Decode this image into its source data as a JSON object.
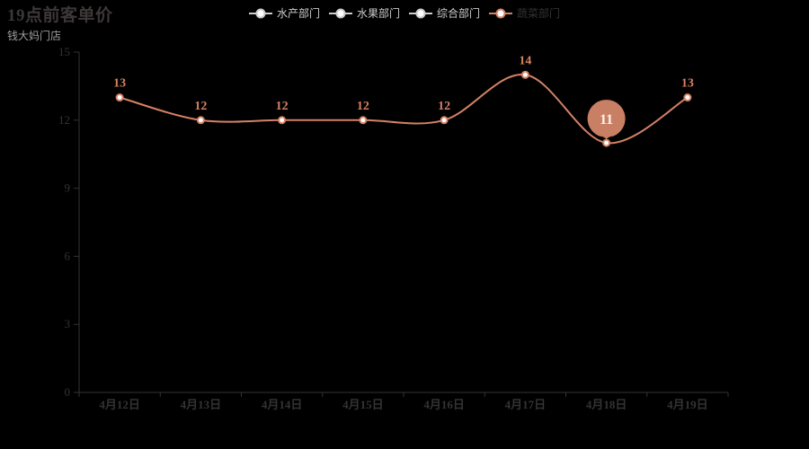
{
  "title": {
    "text": "19点前客单价",
    "subtext": "钱大妈门店",
    "color": "#3d3838",
    "subtext_color": "#9e9e9e"
  },
  "background_color": "#000000",
  "legend": {
    "position": "top-center",
    "inactive_color": "#cccccc",
    "selected_text_color": "#333333",
    "items": [
      {
        "label": "水产部门",
        "color": "#cccccc",
        "selected": false
      },
      {
        "label": "水果部门",
        "color": "#cccccc",
        "selected": false
      },
      {
        "label": "综合部门",
        "color": "#cccccc",
        "selected": false
      },
      {
        "label": "蔬菜部门",
        "color": "#d48265",
        "selected": true
      }
    ]
  },
  "chart_data": {
    "type": "line",
    "title": "19点前客单价",
    "subtitle": "钱大妈门店",
    "categories": [
      "4月12日",
      "4月13日",
      "4月14日",
      "4月15日",
      "4月16日",
      "4月17日",
      "4月18日",
      "4月19日"
    ],
    "series": [
      {
        "name": "蔬菜部门",
        "values": [
          13,
          12,
          12,
          12,
          12,
          14,
          11,
          13
        ],
        "color": "#d48265",
        "smooth": true,
        "point_style": {
          "fill": "#ffffff",
          "stroke": "#d48265"
        },
        "show_point_labels": true
      }
    ],
    "hidden_series": [
      "水产部门",
      "水果部门",
      "综合部门"
    ],
    "markpoint": {
      "category": "4月18日",
      "category_index": 6,
      "value": 11,
      "label": "11",
      "shape": "pin",
      "fill": "#c97f63",
      "text_color": "#fdf3ec"
    },
    "xlabel": "",
    "ylabel": "",
    "ylim": [
      0,
      15
    ],
    "yticks": [
      0,
      3,
      6,
      9,
      12,
      15
    ],
    "grid": false,
    "axis_color": "#333333",
    "axis_label_color": "#333333",
    "legend_position": "top-center"
  }
}
